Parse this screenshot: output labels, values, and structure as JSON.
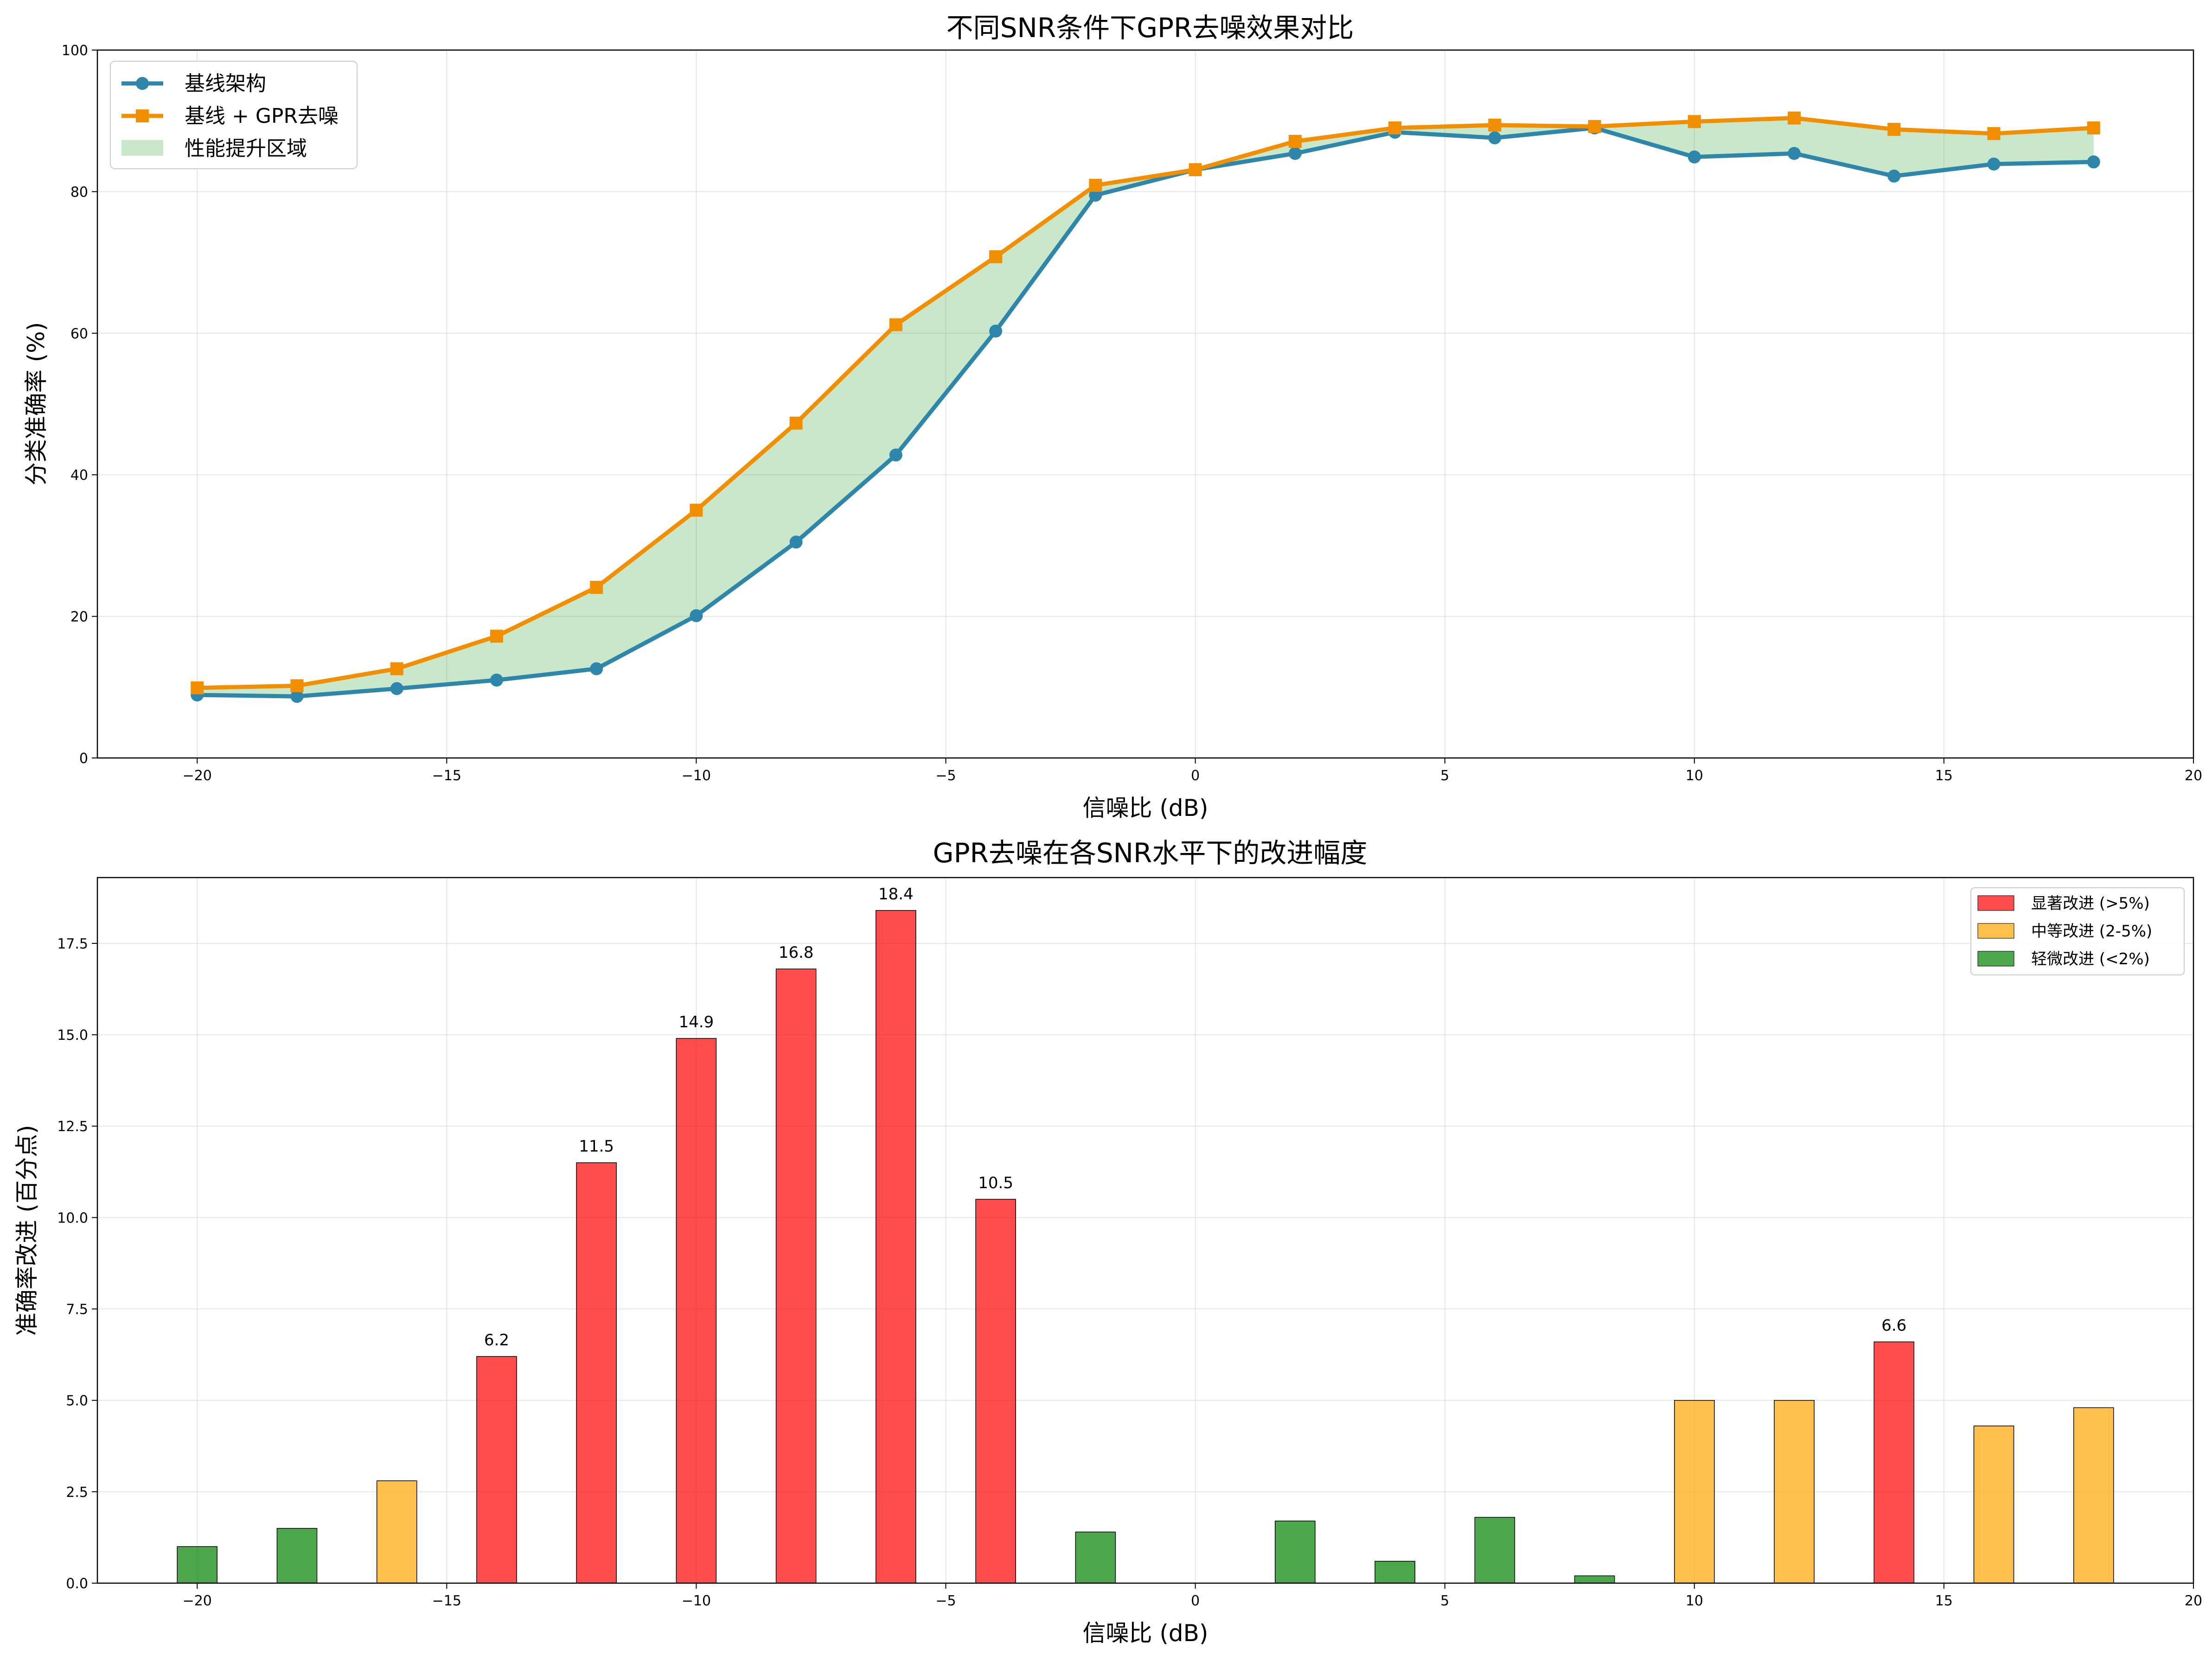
{
  "chart_data": [
    {
      "type": "line",
      "title": "不同SNR条件下GPR去噪效果对比",
      "xlabel": "信噪比 (dB)",
      "ylabel": "分类准确率 (%)",
      "xlim": [
        -22,
        20
      ],
      "ylim": [
        0,
        100
      ],
      "xticks": [
        -20,
        -15,
        -10,
        -5,
        0,
        5,
        10,
        15,
        20
      ],
      "xtick_labels": [
        "−20",
        "−15",
        "−10",
        "−5",
        "0",
        "5",
        "10",
        "15",
        "20"
      ],
      "yticks": [
        0,
        20,
        40,
        60,
        80,
        100
      ],
      "ytick_labels": [
        "0",
        "20",
        "40",
        "60",
        "80",
        "100"
      ],
      "grid": true,
      "legend_position": "upper-left",
      "x": [
        -20,
        -18,
        -16,
        -14,
        -12,
        -10,
        -8,
        -6,
        -4,
        -2,
        0,
        2,
        4,
        6,
        8,
        10,
        12,
        14,
        16,
        18
      ],
      "series": [
        {
          "name": "基线架构",
          "color": "#2e86ab",
          "marker": "circle",
          "values": [
            8.9,
            8.7,
            9.8,
            11.0,
            12.6,
            20.1,
            30.5,
            42.8,
            60.3,
            79.5,
            83.1,
            85.4,
            88.4,
            87.6,
            89.0,
            84.9,
            85.4,
            82.2,
            83.9,
            84.2
          ]
        },
        {
          "name": "基线 + GPR去噪",
          "color": "#f18f01",
          "marker": "square",
          "values": [
            9.9,
            10.2,
            12.6,
            17.2,
            24.1,
            35.0,
            47.3,
            61.2,
            70.8,
            80.9,
            83.1,
            87.1,
            89.0,
            89.4,
            89.2,
            89.9,
            90.4,
            88.8,
            88.2,
            89.0
          ]
        }
      ],
      "fill": {
        "name": "性能提升区域",
        "color": "#4caf50"
      }
    },
    {
      "type": "bar",
      "title": "GPR去噪在各SNR水平下的改进幅度",
      "xlabel": "信噪比 (dB)",
      "ylabel": "准确率改进 (百分点)",
      "xlim": [
        -22,
        20
      ],
      "ylim": [
        0,
        19.3
      ],
      "xticks": [
        -20,
        -15,
        -10,
        -5,
        0,
        5,
        10,
        15,
        20
      ],
      "xtick_labels": [
        "−20",
        "−15",
        "−10",
        "−5",
        "0",
        "5",
        "10",
        "15",
        "20"
      ],
      "yticks": [
        0,
        2.5,
        5,
        7.5,
        10,
        12.5,
        15,
        17.5
      ],
      "ytick_labels": [
        "0.0",
        "2.5",
        "5.0",
        "7.5",
        "10.0",
        "12.5",
        "15.0",
        "17.5"
      ],
      "grid": true,
      "legend_position": "upper-right",
      "x": [
        -20,
        -18,
        -16,
        -14,
        -12,
        -10,
        -8,
        -6,
        -4,
        -2,
        0,
        2,
        4,
        6,
        8,
        10,
        12,
        14,
        16,
        18
      ],
      "values": [
        1.0,
        1.5,
        2.8,
        6.2,
        11.5,
        14.9,
        16.8,
        18.4,
        10.5,
        1.4,
        0.0,
        1.7,
        0.6,
        1.8,
        0.2,
        5.0,
        5.0,
        6.6,
        4.3,
        4.8
      ],
      "category": [
        "minor",
        "minor",
        "moderate",
        "significant",
        "significant",
        "significant",
        "significant",
        "significant",
        "significant",
        "minor",
        "minor",
        "minor",
        "minor",
        "minor",
        "minor",
        "moderate",
        "moderate",
        "significant",
        "moderate",
        "moderate"
      ],
      "data_labels": [
        "",
        "",
        "",
        "6.2",
        "11.5",
        "14.9",
        "16.8",
        "18.4",
        "10.5",
        "",
        "",
        "",
        "",
        "",
        "",
        "",
        "",
        "6.6",
        "",
        ""
      ],
      "legend": [
        {
          "key": "significant",
          "name": "显著改进 (>5%)",
          "color": "#ff0000"
        },
        {
          "key": "moderate",
          "name": "中等改进 (2-5%)",
          "color": "#ffa500"
        },
        {
          "key": "minor",
          "name": "轻微改进 (<2%)",
          "color": "#008000"
        }
      ]
    }
  ]
}
